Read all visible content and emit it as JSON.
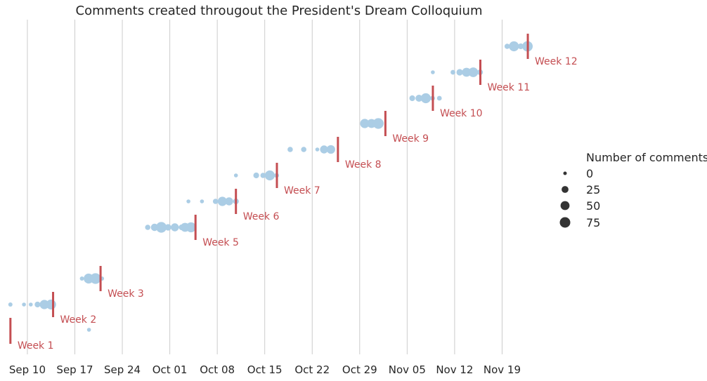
{
  "chart_data": {
    "type": "scatter",
    "title": "Comments created througout the President's Dream Colloquium",
    "xlabel": "",
    "ylabel": "",
    "x_ticks": [
      "Sep 10",
      "Sep 17",
      "Sep 24",
      "Oct 01",
      "Oct 08",
      "Oct 15",
      "Oct 22",
      "Oct 29",
      "Nov 05",
      "Nov 12",
      "Nov 19"
    ],
    "x_range": [
      "2017-09-07",
      "2017-11-25"
    ],
    "grid": "vertical",
    "colors": {
      "points": "#abcde5",
      "markers": "#c44e52",
      "text": "#262626",
      "grid": "#cccccc",
      "legend_marker": "#333333"
    },
    "legend": {
      "title": "Number of comments",
      "position": "right",
      "entries": [
        {
          "label": "0",
          "value": 0
        },
        {
          "label": "25",
          "value": 25
        },
        {
          "label": "50",
          "value": 50
        },
        {
          "label": "75",
          "value": 75
        }
      ]
    },
    "weeks": [
      {
        "label": "Week 1",
        "marker_date": "2017-09-07T12:00",
        "points": []
      },
      {
        "label": "Week 2",
        "marker_date": "2017-09-13T19:00",
        "points": [
          {
            "date": "2017-09-07T12:00",
            "comments": 3
          },
          {
            "date": "2017-09-09T12:00",
            "comments": 2
          },
          {
            "date": "2017-09-10T12:00",
            "comments": 2
          },
          {
            "date": "2017-09-11T12:00",
            "comments": 10
          },
          {
            "date": "2017-09-12T12:00",
            "comments": 45
          },
          {
            "date": "2017-09-13T12:00",
            "comments": 55
          },
          {
            "date": "2017-09-13T22:00",
            "comments": 3
          },
          {
            "date": "2017-09-19T02:00",
            "comments": 2
          }
        ]
      },
      {
        "label": "Week 3",
        "marker_date": "2017-09-20T19:00",
        "points": [
          {
            "date": "2017-09-18T01:00",
            "comments": 3
          },
          {
            "date": "2017-09-19T01:00",
            "comments": 55
          },
          {
            "date": "2017-09-20T01:00",
            "comments": 65
          },
          {
            "date": "2017-09-21T00:00",
            "comments": 3
          }
        ]
      },
      {
        "label": "Week 5",
        "marker_date": "2017-10-04T19:00",
        "points": [
          {
            "date": "2017-09-27T18:00",
            "comments": 8
          },
          {
            "date": "2017-09-28T18:00",
            "comments": 22
          },
          {
            "date": "2017-09-29T18:00",
            "comments": 65
          },
          {
            "date": "2017-09-30T18:00",
            "comments": 15
          },
          {
            "date": "2017-10-01T18:00",
            "comments": 30
          },
          {
            "date": "2017-10-02T18:00",
            "comments": 10
          },
          {
            "date": "2017-10-03T06:00",
            "comments": 40
          },
          {
            "date": "2017-10-04T03:00",
            "comments": 55
          }
        ]
      },
      {
        "label": "Week 6",
        "marker_date": "2017-10-10T18:00",
        "points": [
          {
            "date": "2017-10-03T18:00",
            "comments": 2
          },
          {
            "date": "2017-10-05T18:00",
            "comments": 2
          },
          {
            "date": "2017-10-07T18:00",
            "comments": 8
          },
          {
            "date": "2017-10-08T18:00",
            "comments": 45
          },
          {
            "date": "2017-10-09T18:00",
            "comments": 30
          },
          {
            "date": "2017-10-10T18:00",
            "comments": 10
          }
        ]
      },
      {
        "label": "Week 7",
        "marker_date": "2017-10-16T19:00",
        "points": [
          {
            "date": "2017-10-10T18:00",
            "comments": 2
          },
          {
            "date": "2017-10-13T18:00",
            "comments": 10
          },
          {
            "date": "2017-10-14T18:00",
            "comments": 8
          },
          {
            "date": "2017-10-15T18:00",
            "comments": 55
          },
          {
            "date": "2017-10-16T18:00",
            "comments": 5
          }
        ]
      },
      {
        "label": "Week 8",
        "marker_date": "2017-10-25T19:00",
        "points": [
          {
            "date": "2017-10-18T18:00",
            "comments": 8
          },
          {
            "date": "2017-10-20T18:00",
            "comments": 8
          },
          {
            "date": "2017-10-22T18:00",
            "comments": 2
          },
          {
            "date": "2017-10-23T18:00",
            "comments": 30
          },
          {
            "date": "2017-10-24T18:00",
            "comments": 35
          }
        ]
      },
      {
        "label": "Week 9",
        "marker_date": "2017-11-01T19:00",
        "points": [
          {
            "date": "2017-10-29T18:00",
            "comments": 45
          },
          {
            "date": "2017-10-30T18:00",
            "comments": 40
          },
          {
            "date": "2017-10-31T18:00",
            "comments": 65
          }
        ]
      },
      {
        "label": "Week 10",
        "marker_date": "2017-11-08T19:00",
        "points": [
          {
            "date": "2017-11-05T18:00",
            "comments": 10
          },
          {
            "date": "2017-11-06T18:00",
            "comments": 20
          },
          {
            "date": "2017-11-07T18:00",
            "comments": 55
          },
          {
            "date": "2017-11-08T18:00",
            "comments": 5
          },
          {
            "date": "2017-11-09T18:00",
            "comments": 5
          }
        ]
      },
      {
        "label": "Week 11",
        "marker_date": "2017-11-15T19:00",
        "points": [
          {
            "date": "2017-11-08T19:00",
            "comments": 2
          },
          {
            "date": "2017-11-11T18:00",
            "comments": 5
          },
          {
            "date": "2017-11-12T18:00",
            "comments": 15
          },
          {
            "date": "2017-11-13T18:00",
            "comments": 40
          },
          {
            "date": "2017-11-14T18:00",
            "comments": 50
          },
          {
            "date": "2017-11-15T18:00",
            "comments": 10
          }
        ]
      },
      {
        "label": "Week 12",
        "marker_date": "2017-11-22T19:00",
        "points": [
          {
            "date": "2017-11-19T18:00",
            "comments": 8
          },
          {
            "date": "2017-11-20T18:00",
            "comments": 55
          },
          {
            "date": "2017-11-21T18:00",
            "comments": 10
          },
          {
            "date": "2017-11-22T18:00",
            "comments": 60
          },
          {
            "date": "2017-11-23T03:00",
            "comments": 5
          }
        ]
      }
    ]
  }
}
